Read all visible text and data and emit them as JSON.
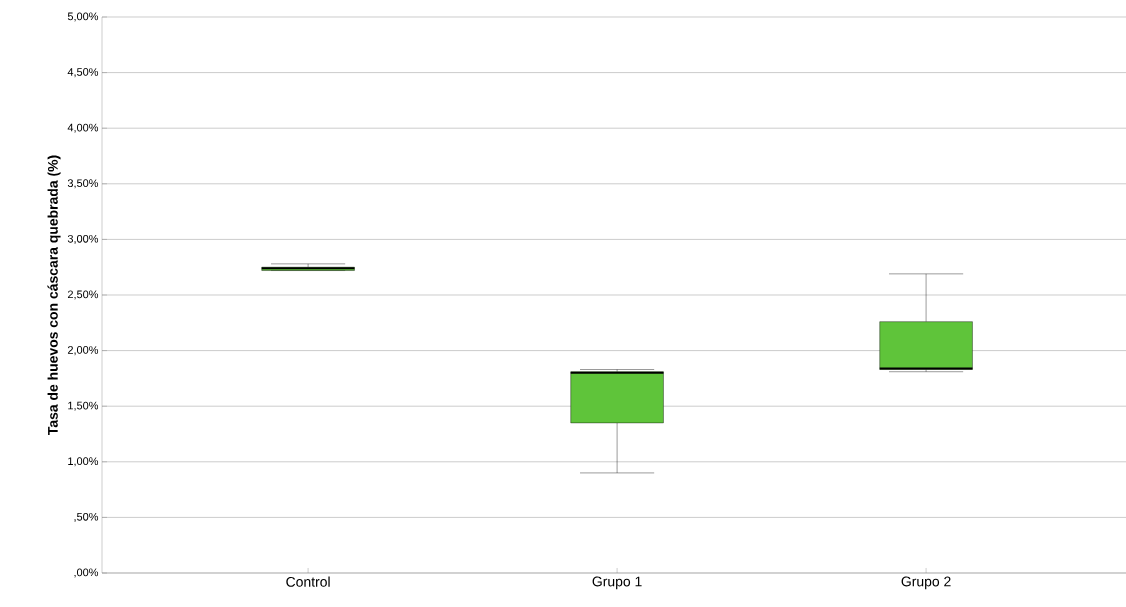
{
  "chart_data": {
    "type": "box",
    "ylabel": "Tasa de huevos con cáscara quebrada (%)",
    "categories": [
      "Control",
      "Grupo 1",
      "Grupo 2"
    ],
    "boxes": [
      {
        "low": 2.72,
        "q1": 2.72,
        "median": 2.74,
        "q3": 2.75,
        "high": 2.78
      },
      {
        "low": 0.9,
        "q1": 1.35,
        "median": 1.8,
        "q3": 1.81,
        "high": 1.83
      },
      {
        "low": 1.81,
        "q1": 1.83,
        "median": 1.84,
        "q3": 2.26,
        "high": 2.69
      }
    ],
    "color": "#5fc43a",
    "ylim": [
      0,
      5
    ],
    "yticks": [
      {
        "value": 0,
        "label": ",00%"
      },
      {
        "value": 0.5,
        "label": ",50%"
      },
      {
        "value": 1,
        "label": "1,00%"
      },
      {
        "value": 1.5,
        "label": "1,50%"
      },
      {
        "value": 2,
        "label": "2,00%"
      },
      {
        "value": 2.5,
        "label": "2,50%"
      },
      {
        "value": 3,
        "label": "3,00%"
      },
      {
        "value": 3.5,
        "label": "3,50%"
      },
      {
        "value": 4,
        "label": "4,00%"
      },
      {
        "value": 4.5,
        "label": "4,50%"
      },
      {
        "value": 5,
        "label": "5,00%"
      }
    ],
    "grid": "y"
  }
}
